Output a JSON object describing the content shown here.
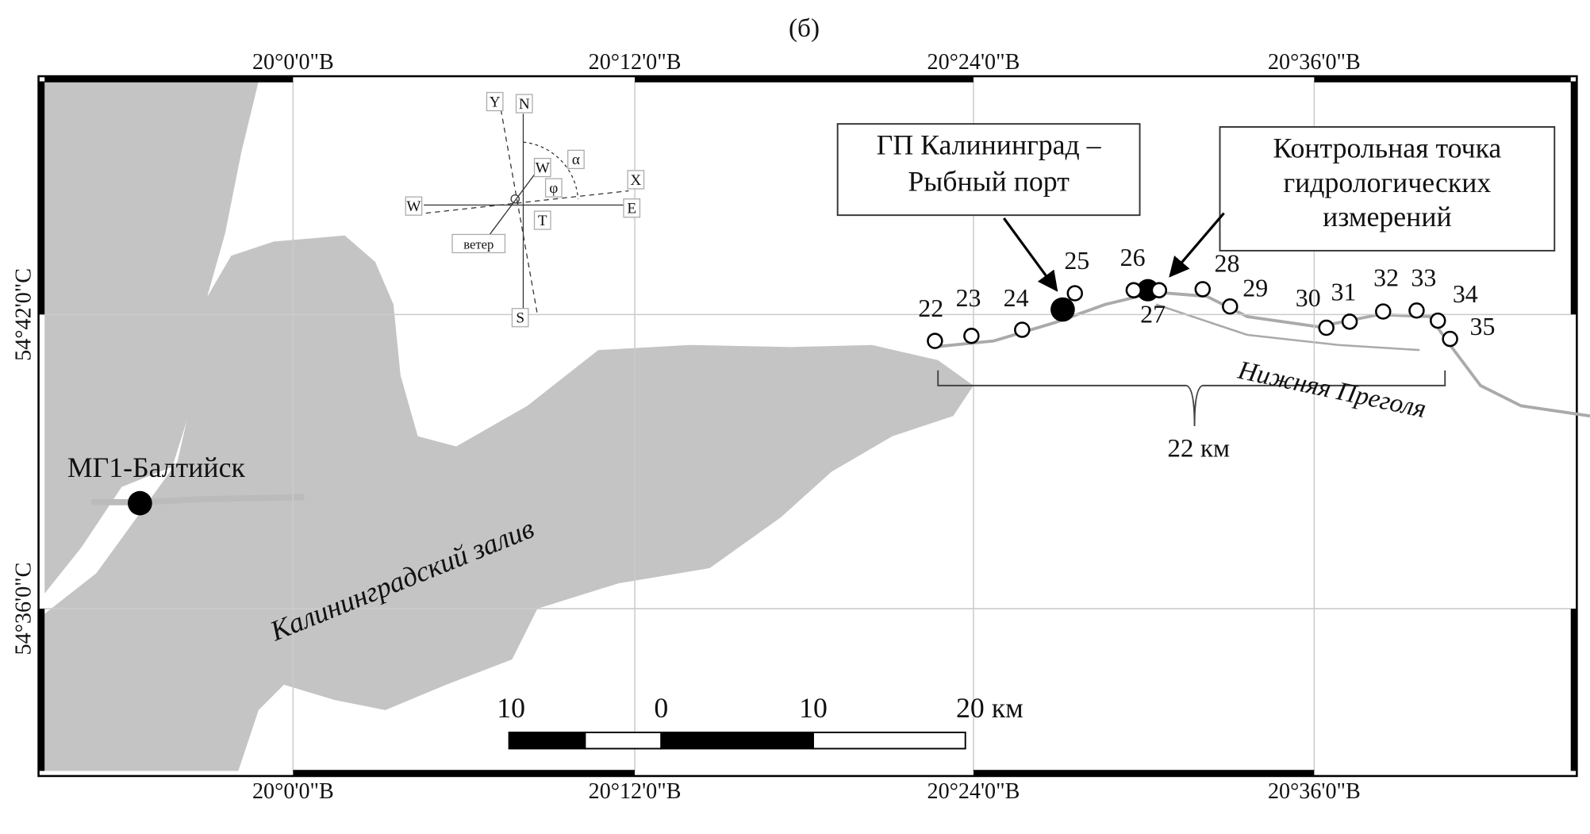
{
  "caption": "(б)",
  "longitude_labels_top": [
    "20°0'0\"В",
    "20°12'0\"В",
    "20°24'0\"В",
    "20°36'0\"В"
  ],
  "longitude_labels_bottom": [
    "20°0'0\"В",
    "20°12'0\"В",
    "20°24'0\"В",
    "20°36'0\"В"
  ],
  "latitude_labels": [
    "54°42'0\"С",
    "54°36'0\"С"
  ],
  "compass": [
    "Y",
    "N",
    "W",
    "E",
    "S",
    "X",
    "W",
    "T",
    "α",
    "φ",
    "ветер"
  ],
  "callouts": [
    {
      "lines": [
        "ГП Калининград –",
        "Рыбный порт"
      ]
    },
    {
      "lines": [
        "Контрольная точка",
        "гидрологических",
        "измерений"
      ]
    }
  ],
  "stations": [
    "22",
    "23",
    "24",
    "25",
    "26",
    "27",
    "28",
    "29",
    "30",
    "31",
    "32",
    "33",
    "34",
    "35"
  ],
  "places": {
    "baltiysk": "МГ1-Балтийск",
    "lagoon": "Калининградский залив",
    "river": "Нижняя Преголя"
  },
  "distance_label": "22 км",
  "scale_bar": [
    "10",
    "0",
    "10",
    "20 км"
  ]
}
